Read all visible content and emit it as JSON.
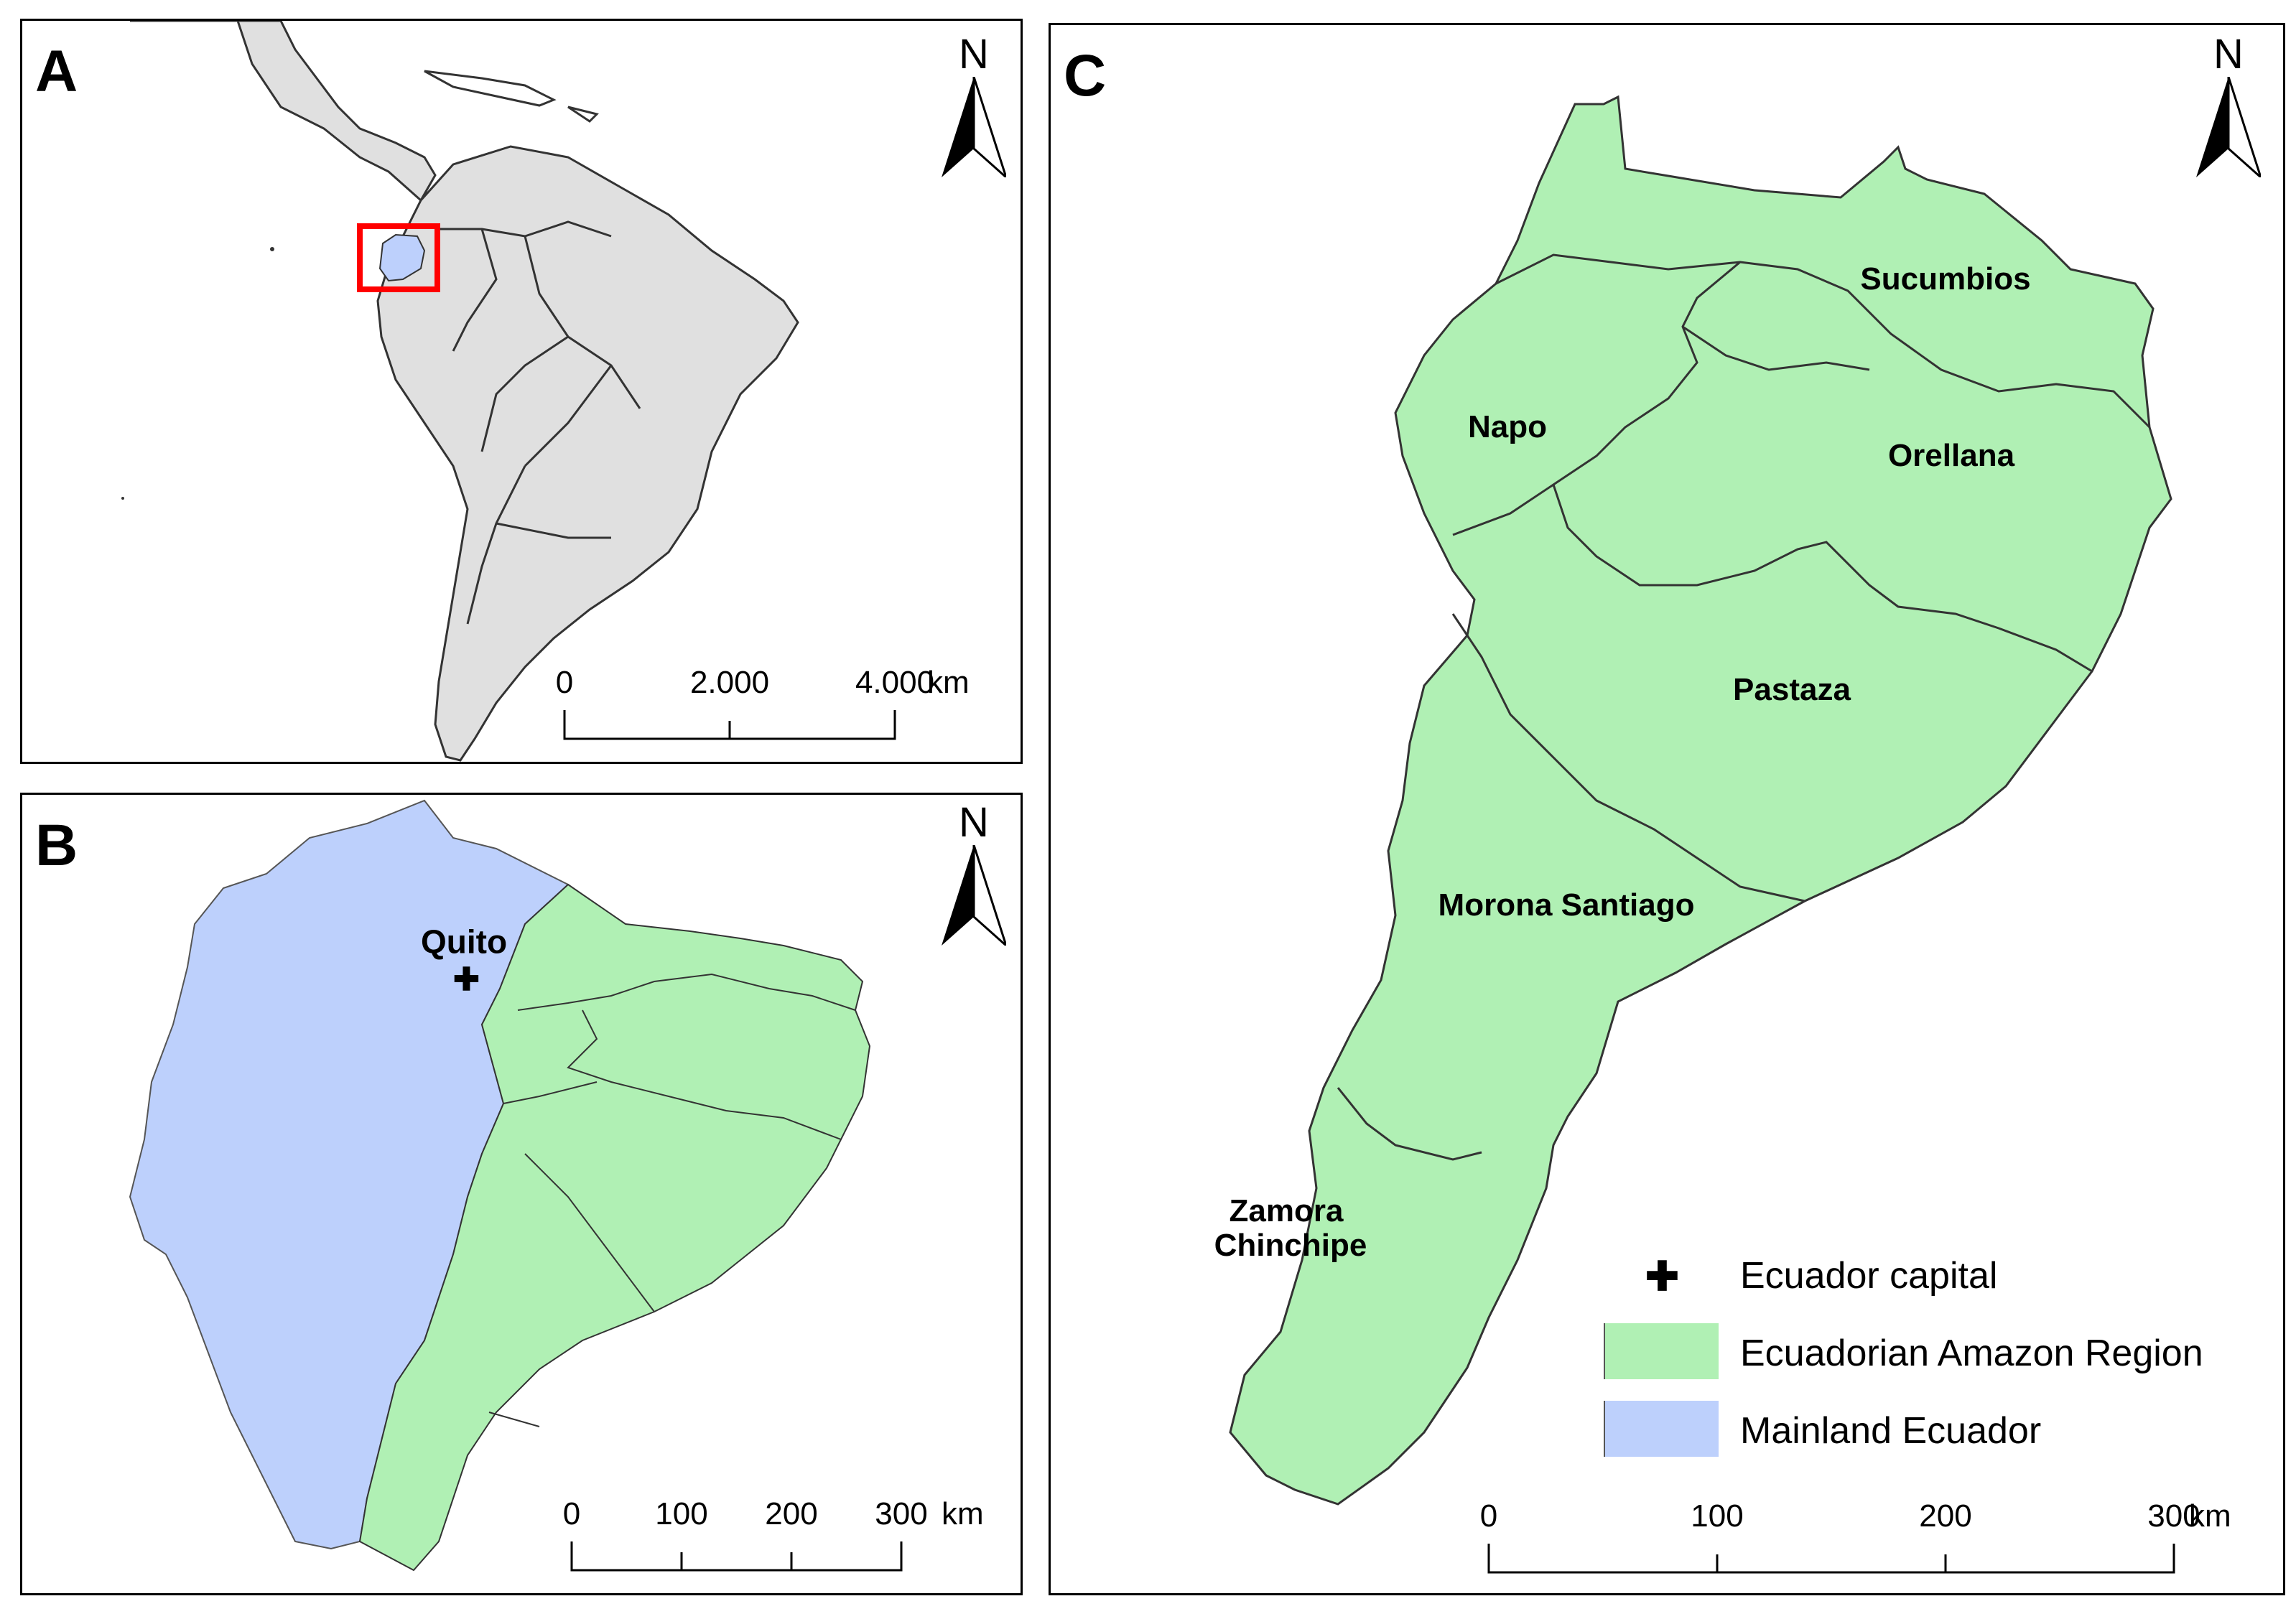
{
  "colors": {
    "land": "#e0e0e0",
    "amazon": "#b0f0b4",
    "mainland": "#bdd0fc",
    "locator_box": "#ff0000",
    "border": "#333333"
  },
  "panels": {
    "a": {
      "letter": "A"
    },
    "b": {
      "letter": "B"
    },
    "c": {
      "letter": "C"
    }
  },
  "north_arrow": {
    "label": "N",
    "icon": "north-arrow-icon"
  },
  "scalebars": {
    "a": {
      "ticks": [
        "0",
        "2.000",
        "4.000"
      ],
      "unit": "km"
    },
    "b": {
      "ticks": [
        "0",
        "100",
        "200",
        "300"
      ],
      "unit": "km"
    },
    "c": {
      "ticks": [
        "0",
        "100",
        "200",
        "300"
      ],
      "unit": "km"
    }
  },
  "panel_b": {
    "capital": "Quito"
  },
  "provinces": {
    "sucumbios": "Sucumbios",
    "napo": "Napo",
    "orellana": "Orellana",
    "pastaza": "Pastaza",
    "morona": "Morona Santiago",
    "zamora_1": "Zamora",
    "zamora_2": "Chinchipe"
  },
  "legend": {
    "capital": {
      "label": "Ecuador capital",
      "icon": "plus-cross-icon",
      "glyph": "✚"
    },
    "amazon": {
      "label": "Ecuadorian Amazon Region"
    },
    "mainland": {
      "label": "Mainland Ecuador"
    }
  }
}
